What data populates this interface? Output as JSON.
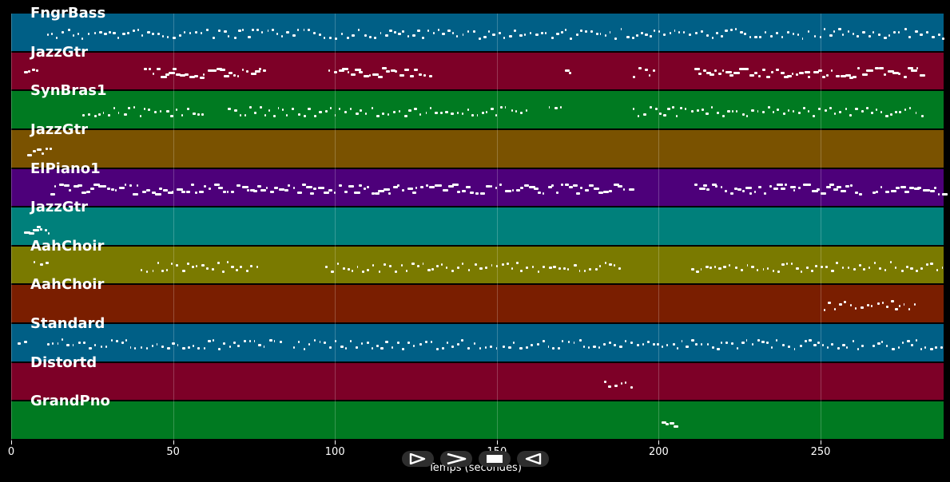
{
  "tracks": [
    {
      "name": "FngrBass",
      "color": "#005f86"
    },
    {
      "name": "JazzGtr",
      "color": "#7d0027"
    },
    {
      "name": "SynBras1",
      "color": "#007a21"
    },
    {
      "name": "JazzGtr",
      "color": "#7a5200"
    },
    {
      "name": "ElPiano1",
      "color": "#4d007a"
    },
    {
      "name": "JazzGtr",
      "color": "#00807b"
    },
    {
      "name": "AahChoir",
      "color": "#7a7a00"
    },
    {
      "name": "AahChoir",
      "color": "#7a1e00"
    },
    {
      "name": "Standard",
      "color": "#005f86"
    },
    {
      "name": "Distortd",
      "color": "#7d0027"
    },
    {
      "name": "GrandPno",
      "color": "#007a21"
    }
  ],
  "axis": {
    "ticks": [
      "0",
      "50",
      "100",
      "150",
      "200",
      "250"
    ],
    "tick_values": [
      0,
      50,
      100,
      150,
      200,
      250
    ],
    "xlim": [
      0,
      288
    ],
    "xlabel": "Temps (secondes)"
  },
  "note_spans": [
    [
      [
        11,
        288,
        "sparse"
      ]
    ],
    [
      [
        4,
        8,
        "dense"
      ],
      [
        41,
        78,
        "dense"
      ],
      [
        98,
        130,
        "dense"
      ],
      [
        171,
        173,
        "dense"
      ],
      [
        192,
        200,
        "sparse"
      ],
      [
        211,
        282,
        "dense"
      ]
    ],
    [
      [
        22,
        60,
        "sparse"
      ],
      [
        67,
        160,
        "sparse"
      ],
      [
        166,
        170,
        "sparse"
      ],
      [
        192,
        282,
        "sparse"
      ]
    ],
    [
      [
        5,
        12,
        "dense"
      ]
    ],
    [
      [
        12,
        192,
        "dense"
      ],
      [
        211,
        263,
        "dense"
      ],
      [
        266,
        288,
        "dense"
      ]
    ],
    [
      [
        4,
        12,
        "dense"
      ]
    ],
    [
      [
        7,
        12,
        "sparse"
      ],
      [
        40,
        76,
        "sparse"
      ],
      [
        97,
        188,
        "sparse"
      ],
      [
        210,
        288,
        "sparse"
      ]
    ],
    [
      [
        251,
        279,
        "sparse"
      ]
    ],
    [
      [
        2,
        5,
        "sparse"
      ],
      [
        11,
        84,
        "sparse"
      ],
      [
        87,
        171,
        "sparse"
      ],
      [
        172,
        263,
        "sparse"
      ],
      [
        266,
        288,
        "sparse"
      ]
    ],
    [
      [
        183,
        192,
        "sparse"
      ]
    ],
    [
      [
        201,
        205,
        "dense"
      ]
    ]
  ],
  "controls": [
    {
      "name": "play-outline-icon"
    },
    {
      "name": "forward-icon"
    },
    {
      "name": "stop-icon"
    },
    {
      "name": "rewind-icon"
    }
  ]
}
